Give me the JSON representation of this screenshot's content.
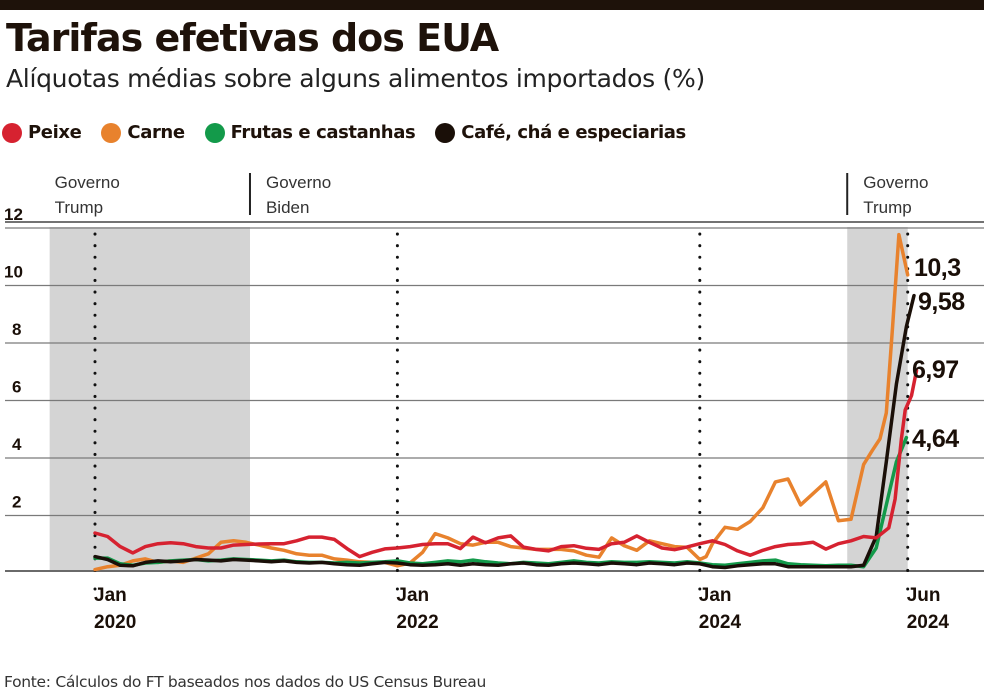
{
  "header": {
    "title": "Tarifas efetivas dos EUA",
    "subtitle": "Alíquotas médias sobre alguns alimentos importados (%)"
  },
  "legend": [
    {
      "label": "Peixe",
      "color": "#d62230"
    },
    {
      "label": "Carne",
      "color": "#e8822d"
    },
    {
      "label": "Frutas e castanhas",
      "color": "#139a4a"
    },
    {
      "label": "Café, chá e especiarias",
      "color": "#1a0f08"
    }
  ],
  "source": "Fonte: Cálculos do FT baseados nos dados do US Census Bureau",
  "chart_data": {
    "type": "line",
    "title": "Tarifas efetivas dos EUA",
    "subtitle": "Alíquotas médias sobre alguns alimentos importados (%)",
    "xlabel": "",
    "ylabel": "%",
    "x_unit": "months since Jan 2020 (tick spacing as drawn)",
    "xlim": [
      -3.6,
      70
    ],
    "ylim": [
      0,
      12.6
    ],
    "yticks": [
      2,
      4,
      6,
      8,
      10,
      12
    ],
    "ytick_labels": [
      "2",
      "4",
      "6",
      "8",
      "10",
      "12"
    ],
    "grid": true,
    "legend_position": "top-left",
    "xticks": [
      {
        "x": 0,
        "line1": "Jan",
        "line2": "2020"
      },
      {
        "x": 24,
        "line1": "Jan",
        "line2": "2022"
      },
      {
        "x": 48,
        "line1": "Jan",
        "line2": "2024"
      },
      {
        "x": 64.5,
        "line1": "Jun",
        "line2": "2024"
      }
    ],
    "shaded_periods": [
      {
        "from": -3.6,
        "to": 12.3,
        "label_line1": "Governo",
        "label_line2": "Trump"
      },
      {
        "from": 59.7,
        "to": 64.5,
        "label_line1": "Governo",
        "label_line2": "Trump"
      }
    ],
    "period_labels": [
      {
        "x": -3.6,
        "line1": "Governo",
        "line2": "Trump",
        "divider": false
      },
      {
        "x": 12.3,
        "line1": "Governo",
        "line2": "Biden",
        "divider": true
      },
      {
        "x": 59.7,
        "line1": "Governo",
        "line2": "Trump",
        "divider": true
      }
    ],
    "series": [
      {
        "name": "Peixe",
        "color": "#d62230",
        "end_label": "6,97",
        "points": [
          [
            0,
            1.32
          ],
          [
            1,
            1.2
          ],
          [
            2,
            0.85
          ],
          [
            3,
            0.63
          ],
          [
            4,
            0.85
          ],
          [
            5,
            0.95
          ],
          [
            6,
            0.98
          ],
          [
            7,
            0.95
          ],
          [
            8,
            0.85
          ],
          [
            9,
            0.8
          ],
          [
            10,
            0.8
          ],
          [
            11,
            0.9
          ],
          [
            12,
            0.92
          ],
          [
            13,
            0.94
          ],
          [
            14,
            0.95
          ],
          [
            15,
            0.95
          ],
          [
            16,
            1.05
          ],
          [
            17,
            1.18
          ],
          [
            18,
            1.18
          ],
          [
            19,
            1.1
          ],
          [
            20,
            0.78
          ],
          [
            21,
            0.5
          ],
          [
            22,
            0.65
          ],
          [
            23,
            0.77
          ],
          [
            24,
            0.8
          ],
          [
            25,
            0.85
          ],
          [
            26,
            0.92
          ],
          [
            27,
            0.95
          ],
          [
            28,
            0.95
          ],
          [
            29,
            0.78
          ],
          [
            30,
            1.18
          ],
          [
            31,
            0.98
          ],
          [
            32,
            1.15
          ],
          [
            33,
            1.22
          ],
          [
            34,
            0.83
          ],
          [
            35,
            0.75
          ],
          [
            36,
            0.7
          ],
          [
            37,
            0.85
          ],
          [
            38,
            0.88
          ],
          [
            39,
            0.79
          ],
          [
            40,
            0.75
          ],
          [
            41,
            0.95
          ],
          [
            42,
            1.0
          ],
          [
            43,
            1.22
          ],
          [
            44,
            1.0
          ],
          [
            45,
            0.8
          ],
          [
            46,
            0.74
          ],
          [
            47,
            0.84
          ],
          [
            48,
            0.95
          ],
          [
            49,
            1.05
          ],
          [
            50,
            0.92
          ],
          [
            51,
            0.7
          ],
          [
            52,
            0.55
          ],
          [
            53,
            0.72
          ],
          [
            54,
            0.85
          ],
          [
            55,
            0.92
          ],
          [
            56,
            0.95
          ],
          [
            57,
            1.0
          ],
          [
            58,
            0.76
          ],
          [
            59,
            0.95
          ],
          [
            60,
            1.05
          ],
          [
            61,
            1.2
          ],
          [
            62,
            1.15
          ],
          [
            63,
            1.5
          ],
          [
            63.5,
            2.5
          ],
          [
            64,
            4.6
          ],
          [
            64.3,
            5.6
          ],
          [
            64.8,
            6.1
          ],
          [
            65.2,
            6.97
          ]
        ]
      },
      {
        "name": "Carne",
        "color": "#e8822d",
        "end_label": "10,3",
        "points": [
          [
            0,
            0.05
          ],
          [
            1,
            0.15
          ],
          [
            2,
            0.2
          ],
          [
            3,
            0.35
          ],
          [
            4,
            0.42
          ],
          [
            5,
            0.3
          ],
          [
            6,
            0.35
          ],
          [
            7,
            0.3
          ],
          [
            8,
            0.45
          ],
          [
            9,
            0.6
          ],
          [
            10,
            1.0
          ],
          [
            11,
            1.05
          ],
          [
            12,
            1.0
          ],
          [
            13,
            0.9
          ],
          [
            14,
            0.8
          ],
          [
            15,
            0.72
          ],
          [
            16,
            0.6
          ],
          [
            17,
            0.55
          ],
          [
            18,
            0.55
          ],
          [
            19,
            0.42
          ],
          [
            20,
            0.38
          ],
          [
            21,
            0.32
          ],
          [
            22,
            0.3
          ],
          [
            23,
            0.3
          ],
          [
            24,
            0.18
          ],
          [
            25,
            0.28
          ],
          [
            26,
            0.65
          ],
          [
            27,
            1.3
          ],
          [
            28,
            1.15
          ],
          [
            29,
            0.95
          ],
          [
            30,
            0.9
          ],
          [
            31,
            1.0
          ],
          [
            32,
            1.0
          ],
          [
            33,
            0.85
          ],
          [
            34,
            0.8
          ],
          [
            35,
            0.75
          ],
          [
            36,
            0.75
          ],
          [
            37,
            0.75
          ],
          [
            38,
            0.7
          ],
          [
            39,
            0.55
          ],
          [
            40,
            0.48
          ],
          [
            41,
            1.15
          ],
          [
            42,
            0.88
          ],
          [
            43,
            0.72
          ],
          [
            44,
            1.05
          ],
          [
            45,
            0.95
          ],
          [
            46,
            0.85
          ],
          [
            47,
            0.82
          ],
          [
            48,
            0.4
          ],
          [
            48.5,
            0.5
          ],
          [
            49,
            0.95
          ],
          [
            50,
            1.52
          ],
          [
            51,
            1.45
          ],
          [
            52,
            1.72
          ],
          [
            53,
            2.2
          ],
          [
            54,
            3.1
          ],
          [
            55,
            3.2
          ],
          [
            56,
            2.3
          ],
          [
            57,
            2.7
          ],
          [
            58,
            3.1
          ],
          [
            59,
            1.75
          ],
          [
            60,
            1.8
          ],
          [
            61,
            3.7
          ],
          [
            61.7,
            4.2
          ],
          [
            62.3,
            4.6
          ],
          [
            62.8,
            5.5
          ],
          [
            63.3,
            8.5
          ],
          [
            63.8,
            11.7
          ],
          [
            64.5,
            10.3
          ]
        ]
      },
      {
        "name": "Frutas e castanhas",
        "color": "#139a4a",
        "end_label": "4,64",
        "points": [
          [
            0,
            0.45
          ],
          [
            1,
            0.45
          ],
          [
            2,
            0.25
          ],
          [
            3,
            0.2
          ],
          [
            4,
            0.28
          ],
          [
            5,
            0.3
          ],
          [
            6,
            0.35
          ],
          [
            7,
            0.38
          ],
          [
            8,
            0.4
          ],
          [
            9,
            0.35
          ],
          [
            10,
            0.38
          ],
          [
            11,
            0.42
          ],
          [
            12,
            0.4
          ],
          [
            13,
            0.38
          ],
          [
            14,
            0.35
          ],
          [
            15,
            0.38
          ],
          [
            16,
            0.32
          ],
          [
            17,
            0.3
          ],
          [
            18,
            0.3
          ],
          [
            19,
            0.28
          ],
          [
            20,
            0.3
          ],
          [
            21,
            0.28
          ],
          [
            22,
            0.3
          ],
          [
            23,
            0.32
          ],
          [
            24,
            0.35
          ],
          [
            25,
            0.28
          ],
          [
            26,
            0.25
          ],
          [
            27,
            0.3
          ],
          [
            28,
            0.35
          ],
          [
            29,
            0.32
          ],
          [
            30,
            0.38
          ],
          [
            31,
            0.32
          ],
          [
            32,
            0.28
          ],
          [
            33,
            0.25
          ],
          [
            34,
            0.3
          ],
          [
            35,
            0.28
          ],
          [
            36,
            0.25
          ],
          [
            37,
            0.3
          ],
          [
            38,
            0.35
          ],
          [
            39,
            0.3
          ],
          [
            40,
            0.28
          ],
          [
            41,
            0.32
          ],
          [
            42,
            0.3
          ],
          [
            43,
            0.3
          ],
          [
            44,
            0.32
          ],
          [
            45,
            0.3
          ],
          [
            46,
            0.28
          ],
          [
            47,
            0.32
          ],
          [
            48,
            0.28
          ],
          [
            49,
            0.22
          ],
          [
            50,
            0.2
          ],
          [
            51,
            0.25
          ],
          [
            52,
            0.3
          ],
          [
            53,
            0.35
          ],
          [
            54,
            0.38
          ],
          [
            55,
            0.25
          ],
          [
            56,
            0.22
          ],
          [
            57,
            0.2
          ],
          [
            58,
            0.18
          ],
          [
            59,
            0.2
          ],
          [
            60,
            0.2
          ],
          [
            61,
            0.15
          ],
          [
            62,
            0.8
          ],
          [
            62.8,
            2.3
          ],
          [
            63.6,
            3.8
          ],
          [
            64.4,
            4.64
          ]
        ]
      },
      {
        "name": "Café, chá e especiarias",
        "color": "#1a0f08",
        "end_label": "9,58",
        "points": [
          [
            0,
            0.5
          ],
          [
            1,
            0.4
          ],
          [
            2,
            0.2
          ],
          [
            3,
            0.18
          ],
          [
            4,
            0.3
          ],
          [
            5,
            0.35
          ],
          [
            6,
            0.32
          ],
          [
            7,
            0.35
          ],
          [
            8,
            0.4
          ],
          [
            9,
            0.38
          ],
          [
            10,
            0.35
          ],
          [
            11,
            0.4
          ],
          [
            12,
            0.38
          ],
          [
            13,
            0.35
          ],
          [
            14,
            0.32
          ],
          [
            15,
            0.35
          ],
          [
            16,
            0.3
          ],
          [
            17,
            0.28
          ],
          [
            18,
            0.3
          ],
          [
            19,
            0.25
          ],
          [
            20,
            0.22
          ],
          [
            21,
            0.2
          ],
          [
            22,
            0.25
          ],
          [
            23,
            0.3
          ],
          [
            24,
            0.28
          ],
          [
            25,
            0.22
          ],
          [
            26,
            0.2
          ],
          [
            27,
            0.22
          ],
          [
            28,
            0.25
          ],
          [
            29,
            0.2
          ],
          [
            30,
            0.25
          ],
          [
            31,
            0.22
          ],
          [
            32,
            0.2
          ],
          [
            33,
            0.25
          ],
          [
            34,
            0.28
          ],
          [
            35,
            0.22
          ],
          [
            36,
            0.2
          ],
          [
            37,
            0.25
          ],
          [
            38,
            0.28
          ],
          [
            39,
            0.25
          ],
          [
            40,
            0.22
          ],
          [
            41,
            0.28
          ],
          [
            42,
            0.25
          ],
          [
            43,
            0.22
          ],
          [
            44,
            0.28
          ],
          [
            45,
            0.25
          ],
          [
            46,
            0.22
          ],
          [
            47,
            0.28
          ],
          [
            48,
            0.25
          ],
          [
            49,
            0.15
          ],
          [
            50,
            0.12
          ],
          [
            51,
            0.18
          ],
          [
            52,
            0.22
          ],
          [
            53,
            0.25
          ],
          [
            54,
            0.25
          ],
          [
            55,
            0.15
          ],
          [
            56,
            0.15
          ],
          [
            57,
            0.15
          ],
          [
            58,
            0.15
          ],
          [
            59,
            0.15
          ],
          [
            60,
            0.15
          ],
          [
            61,
            0.2
          ],
          [
            62,
            1.2
          ],
          [
            62.8,
            3.8
          ],
          [
            63.6,
            6.5
          ],
          [
            64.4,
            8.5
          ],
          [
            65,
            9.58
          ]
        ]
      }
    ]
  }
}
